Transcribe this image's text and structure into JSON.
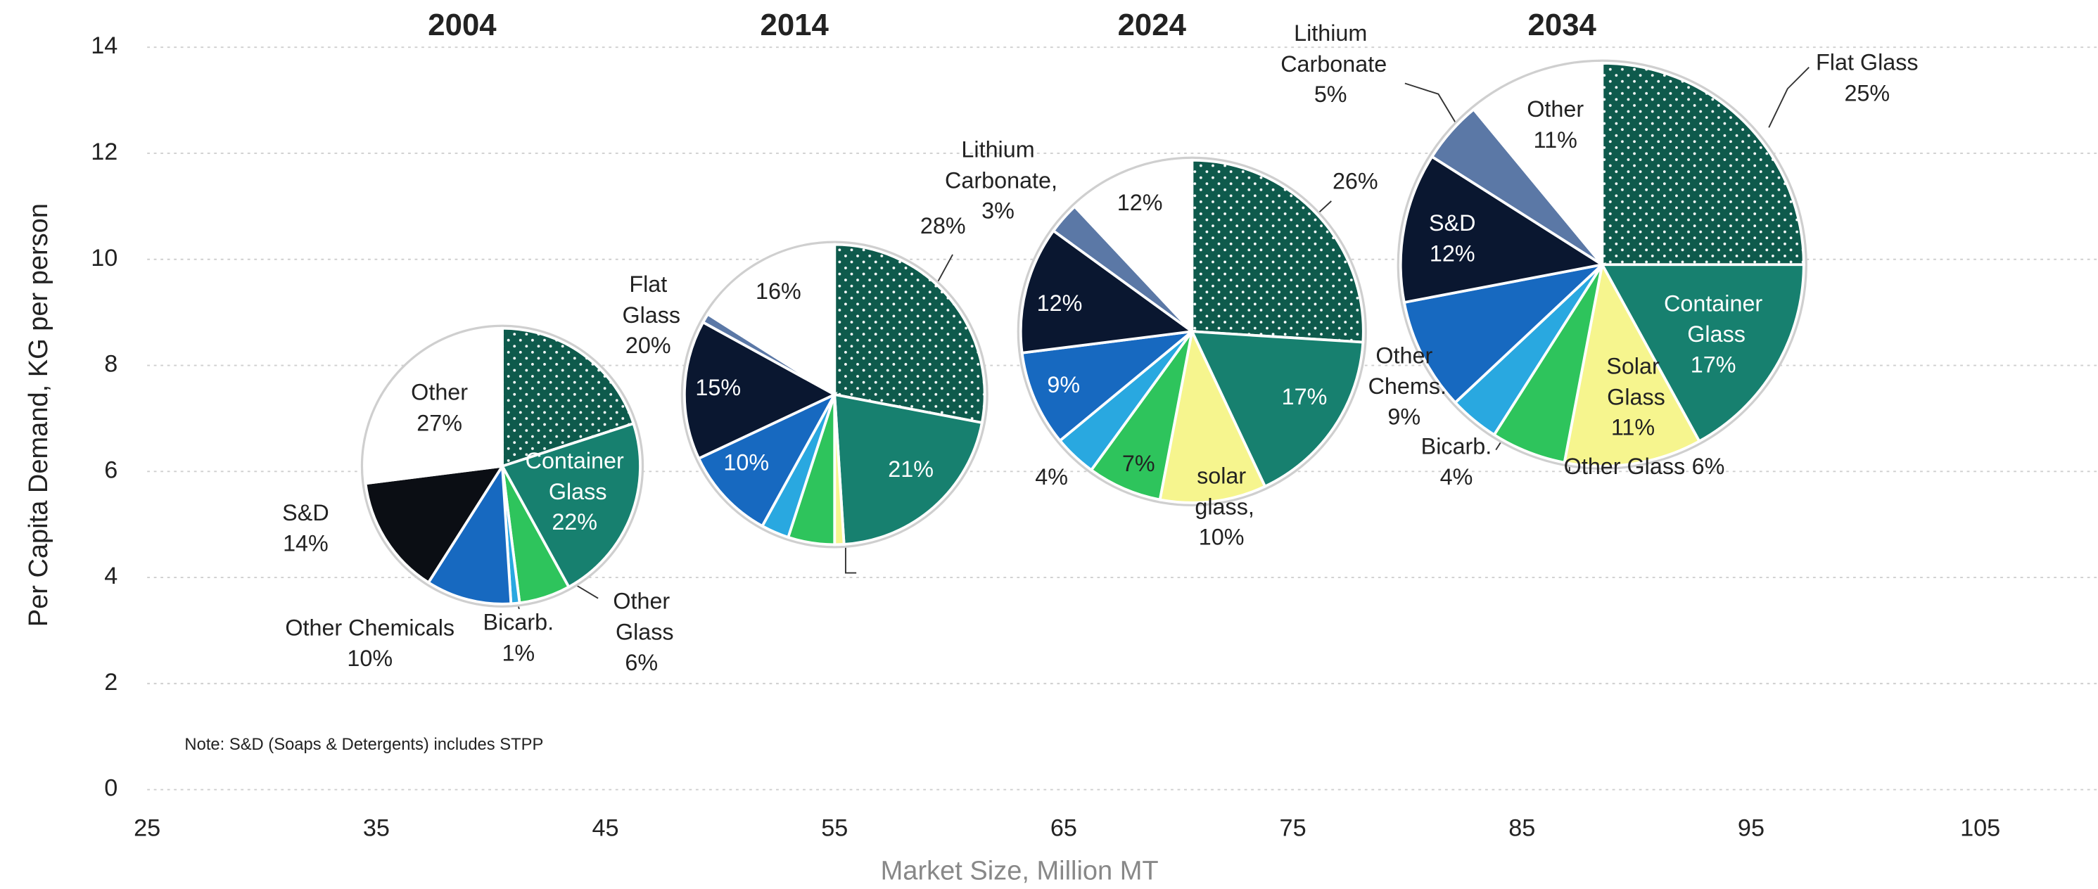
{
  "chart_data": {
    "type": "pie",
    "xlabel": "Market Size, Million MT",
    "ylabel": "Per Capita Demand, KG per person",
    "note": "Note: S&D (Soaps & Detergents) includes STPP",
    "xlim": [
      25,
      110
    ],
    "xticks": [
      25,
      35,
      45,
      55,
      65,
      75,
      85,
      95,
      105
    ],
    "ylim": [
      0,
      14
    ],
    "yticks": [
      0,
      2,
      4,
      6,
      8,
      10,
      12,
      14
    ],
    "grid": true,
    "dotted_color": "#0e5a4c",
    "pies": [
      {
        "title": "2004",
        "x": 40.5,
        "y": 6.1,
        "size": 2.6,
        "categories": [
          "Flat Glass",
          "Container Glass",
          "Other Glass",
          "Bicarb.",
          "Other Chemicals",
          "S&D",
          "Other"
        ],
        "values": [
          20,
          22,
          6,
          1,
          10,
          14,
          27
        ],
        "value_labels": [
          "20%",
          "22%",
          "6%",
          "1%",
          "10%",
          "14%",
          "27%"
        ],
        "colors": [
          "#0e5a4c",
          "#17806f",
          "#2ec45c",
          "#29a8e0",
          "#1769c0",
          "#0b0e14",
          "#ffffff"
        ]
      },
      {
        "title": "2014",
        "x": 55,
        "y": 7.45,
        "size": 2.83,
        "categories": [
          null,
          null,
          null,
          null,
          null,
          null,
          null,
          null,
          null
        ],
        "values": [
          28,
          21,
          1,
          5,
          3,
          10,
          15,
          1,
          16
        ],
        "value_labels": [
          "28%",
          "21%",
          null,
          null,
          null,
          "10%",
          "15%",
          null,
          "16%"
        ],
        "colors": [
          "#0e5a4c",
          "#17806f",
          "#f6f58e",
          "#2ec45c",
          "#29a8e0",
          "#1769c0",
          "#0a1730",
          "#5b78a6",
          "#ffffff"
        ]
      },
      {
        "title": "2024",
        "x": 70.6,
        "y": 8.64,
        "size": 3.23,
        "categories": [
          null,
          null,
          "solar glass,",
          null,
          null,
          null,
          null,
          "Lithium Carbonate,",
          null
        ],
        "values": [
          26,
          17,
          10,
          7,
          4,
          9,
          12,
          3,
          12
        ],
        "value_labels": [
          "26%",
          "17%",
          "10%",
          "7%",
          "4%",
          "9%",
          "12%",
          "3%",
          "12%"
        ],
        "colors": [
          "#0e5a4c",
          "#17806f",
          "#f6f58e",
          "#2ec45c",
          "#29a8e0",
          "#1769c0",
          "#0a1730",
          "#5b78a6",
          "#ffffff"
        ]
      },
      {
        "title": "2034",
        "x": 88.5,
        "y": 9.9,
        "size": 3.8,
        "categories": [
          "Flat Glass",
          "Container Glass",
          "Solar Glass",
          "Other Glass",
          "Bicarb.",
          "Other Chems.",
          "S&D",
          "Lithium Carbonate",
          "Other"
        ],
        "values": [
          25,
          17,
          11,
          6,
          4,
          9,
          12,
          5,
          11
        ],
        "value_labels": [
          "25%",
          "17%",
          "11%",
          "6%",
          "4%",
          "9%",
          "12%",
          "5%",
          "11%"
        ],
        "colors": [
          "#0e5a4c",
          "#17806f",
          "#f6f58e",
          "#2ec45c",
          "#29a8e0",
          "#1769c0",
          "#0a1730",
          "#5b78a6",
          "#ffffff"
        ]
      }
    ]
  }
}
